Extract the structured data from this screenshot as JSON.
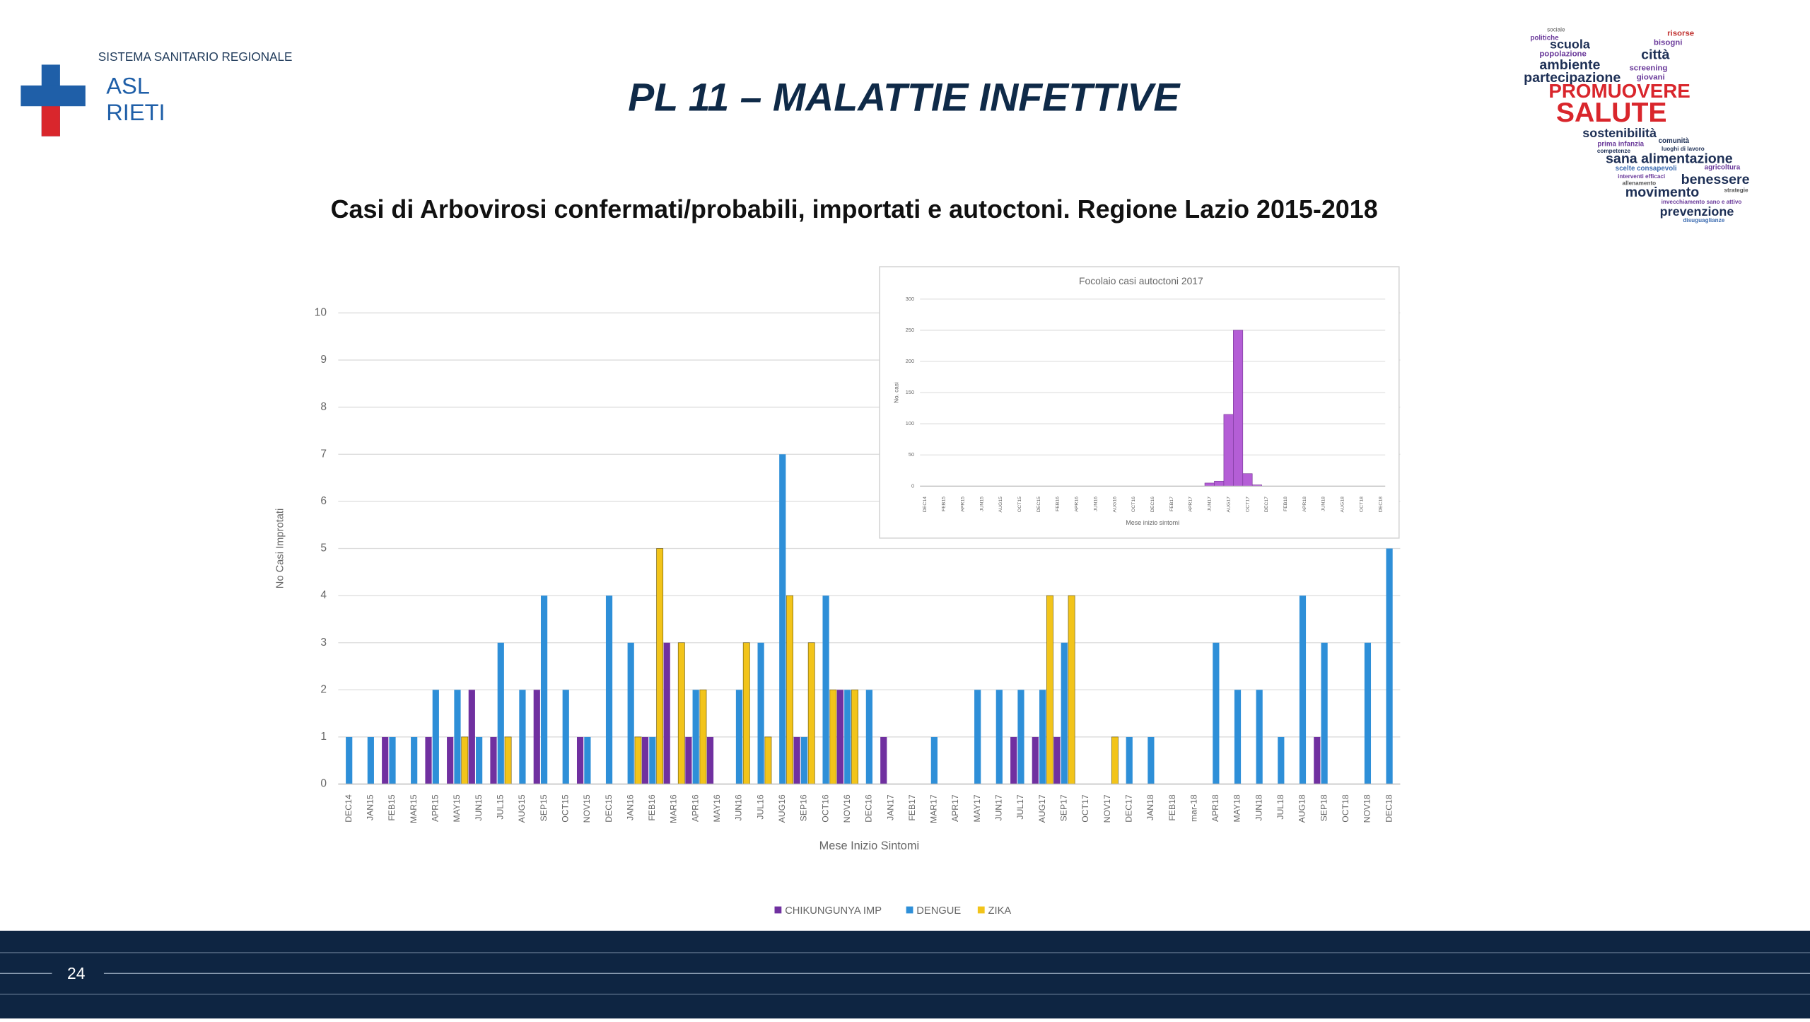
{
  "header": {
    "org": "SISTEMA SANITARIO REGIONALE",
    "logo_line1": "ASL",
    "logo_line2": "RIETI",
    "title": "PL 11 – MALATTIE INFETTIVE"
  },
  "subtitle": "Casi di Arbovirosi confermati/probabili, importati e autoctoni. Regione Lazio 2015-2018",
  "word_cloud": [
    "sociale",
    "politiche",
    "scuola",
    "popolazione",
    "ambiente",
    "partecipazione",
    "risorse",
    "bisogni",
    "città",
    "screening",
    "giovani",
    "PROMUOVERE",
    "SALUTE",
    "sostenibilità",
    "prima infanzia",
    "comunità",
    "competenze",
    "luoghi di lavoro",
    "sana alimentazione",
    "scelte consapevoli",
    "agricoltura",
    "interventi efficaci",
    "benessere",
    "allenamento",
    "movimento",
    "strategie",
    "invecchiamento sano e attivo",
    "prevenzione",
    "disuguaglianze"
  ],
  "page_number": "24",
  "chart_data": [
    {
      "type": "bar",
      "x_label": "Mese Inizio Sintomi",
      "y_label": "No Casi Improtati",
      "categories": [
        "DEC14",
        "JAN15",
        "FEB15",
        "MAR15",
        "APR15",
        "MAY15",
        "JUN15",
        "JUL15",
        "AUG15",
        "SEP15",
        "OCT15",
        "NOV15",
        "DEC15",
        "JAN16",
        "FEB16",
        "MAR16",
        "APR16",
        "MAY16",
        "JUN16",
        "JUL16",
        "AUG16",
        "SEP16",
        "OCT16",
        "NOV16",
        "DEC16",
        "JAN17",
        "FEB17",
        "MAR17",
        "APR17",
        "MAY17",
        "JUN17",
        "JUL17",
        "AUG17",
        "SEP17",
        "OCT17",
        "NOV17",
        "DEC17",
        "JAN18",
        "FEB18",
        "mar-18",
        "APR18",
        "MAY18",
        "JUN18",
        "JUL18",
        "AUG18",
        "SEP18",
        "OCT18",
        "NOV18",
        "DEC18"
      ],
      "series": [
        {
          "name": "CHIKUNGUNYA IMP",
          "color": "#7030a0",
          "values": [
            0,
            0,
            1,
            0,
            1,
            1,
            2,
            1,
            0,
            2,
            0,
            1,
            0,
            0,
            1,
            3,
            1,
            1,
            0,
            0,
            0,
            1,
            0,
            2,
            0,
            1,
            0,
            0,
            0,
            0,
            0,
            1,
            1,
            1,
            0,
            0,
            0,
            0,
            0,
            0,
            0,
            0,
            0,
            0,
            0,
            1,
            0,
            0,
            0
          ]
        },
        {
          "name": "DENGUE",
          "color": "#2e8fd8",
          "values": [
            1,
            1,
            1,
            1,
            2,
            2,
            1,
            3,
            2,
            4,
            2,
            1,
            4,
            3,
            1,
            0,
            2,
            0,
            2,
            3,
            7,
            1,
            4,
            2,
            2,
            0,
            0,
            1,
            0,
            2,
            2,
            2,
            2,
            3,
            0,
            0,
            1,
            1,
            0,
            0,
            3,
            2,
            2,
            1,
            4,
            3,
            0,
            3,
            5
          ]
        },
        {
          "name": "ZIKA",
          "color": "#f2c41a",
          "values": [
            0,
            0,
            0,
            0,
            0,
            1,
            0,
            1,
            0,
            0,
            0,
            0,
            0,
            1,
            5,
            3,
            2,
            0,
            3,
            1,
            4,
            3,
            2,
            2,
            0,
            0,
            0,
            0,
            0,
            0,
            0,
            0,
            4,
            4,
            0,
            1,
            0,
            0,
            0,
            0,
            0,
            0,
            0,
            0,
            0,
            0,
            0,
            0,
            0
          ]
        }
      ],
      "ylim": [
        0,
        10
      ],
      "yticks": [
        0,
        1,
        2,
        3,
        4,
        5,
        6,
        7,
        8,
        9,
        10
      ],
      "grid": true,
      "legend": "bottom"
    },
    {
      "type": "bar",
      "title": "Focolaio casi autoctoni 2017",
      "x_label": "Mese inizio sintomi",
      "y_label": "No. casi",
      "categories": [
        "DEC14",
        null,
        "FEB15",
        null,
        "APR15",
        null,
        "JUN15",
        null,
        "AUG15",
        null,
        "OCT15",
        null,
        "DEC15",
        null,
        "FEB16",
        null,
        "APR16",
        null,
        "JUN16",
        null,
        "AUG16",
        null,
        "OCT16",
        null,
        "DEC16",
        null,
        "FEB17",
        null,
        "APR17",
        null,
        "JUN17",
        null,
        "AUG17",
        null,
        "OCT17",
        null,
        "DEC17",
        null,
        "FEB18",
        null,
        "APR18",
        null,
        "JUN18",
        null,
        "AUG18",
        null,
        "OCT18",
        null,
        "DEC18"
      ],
      "values": [
        0,
        0,
        0,
        0,
        0,
        0,
        0,
        0,
        0,
        0,
        0,
        0,
        0,
        0,
        0,
        0,
        0,
        0,
        0,
        0,
        0,
        0,
        0,
        0,
        0,
        0,
        0,
        0,
        0,
        0,
        5,
        8,
        115,
        250,
        20,
        2,
        0,
        0,
        0,
        0,
        0,
        0,
        0,
        0,
        0,
        0,
        0,
        0,
        0
      ],
      "color": "#b45ed6",
      "ylim": [
        0,
        300
      ],
      "yticks": [
        0,
        50,
        100,
        150,
        200,
        250,
        300
      ],
      "grid": true
    }
  ]
}
